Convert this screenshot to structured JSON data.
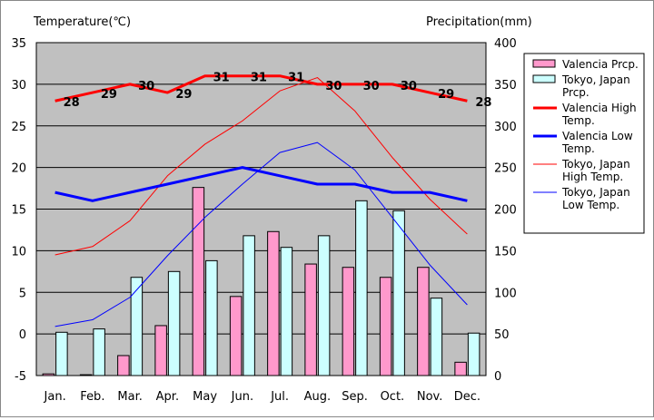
{
  "chart_data": {
    "type": "bar",
    "left_axis_label": "Temperature(℃)",
    "right_axis_label": "Precipitation(mm)",
    "categories": [
      "Jan.",
      "Feb.",
      "Mar.",
      "Apr.",
      "May",
      "Jun.",
      "Jul.",
      "Aug.",
      "Sep.",
      "Oct.",
      "Nov.",
      "Dec."
    ],
    "ylim_left": [
      -5,
      35
    ],
    "ylim_right": [
      0,
      400
    ],
    "yticks_left": [
      -5,
      0,
      5,
      10,
      15,
      20,
      25,
      30,
      35
    ],
    "yticks_right": [
      0,
      50,
      100,
      150,
      200,
      250,
      300,
      350,
      400
    ],
    "grid": true,
    "legend_position": "right",
    "bar_series": [
      {
        "name": "Valencia Prcp.",
        "color": "#ff99cc",
        "axis": "right",
        "values": [
          2,
          1,
          24,
          60,
          226,
          95,
          173,
          134,
          130,
          118,
          130,
          16
        ]
      },
      {
        "name": "Tokyo, Japan Prcp.",
        "color": "#ccffff",
        "axis": "right",
        "values": [
          52,
          56,
          118,
          125,
          138,
          168,
          154,
          168,
          210,
          198,
          93,
          51
        ]
      }
    ],
    "line_series": [
      {
        "name": "Valencia High Temp.",
        "color": "#ff0000",
        "width": 3,
        "axis": "left",
        "values": [
          28,
          29,
          30,
          29,
          31,
          31,
          31,
          30,
          30,
          30,
          29,
          28
        ],
        "labels": [
          "28",
          "29",
          "30",
          "29",
          "31",
          "31",
          "31",
          "30",
          "30",
          "30",
          "29",
          "28"
        ]
      },
      {
        "name": "Valencia Low Temp.",
        "color": "#0000ff",
        "width": 3,
        "axis": "left",
        "values": [
          17,
          16,
          17,
          18,
          19,
          20,
          19,
          18,
          18,
          17,
          17,
          16
        ]
      },
      {
        "name": "Tokyo, Japan High Temp.",
        "color": "#ff0000",
        "width": 1,
        "axis": "left",
        "values": [
          9.5,
          10.5,
          13.6,
          19,
          22.8,
          25.6,
          29.2,
          30.8,
          26.8,
          21.2,
          16.2,
          12
        ]
      },
      {
        "name": "Tokyo, Japan Low Temp.",
        "color": "#0000ff",
        "width": 1,
        "axis": "left",
        "values": [
          0.9,
          1.7,
          4.4,
          9.4,
          14,
          18,
          21.8,
          23,
          19.7,
          14,
          8.3,
          3.5
        ]
      }
    ]
  }
}
